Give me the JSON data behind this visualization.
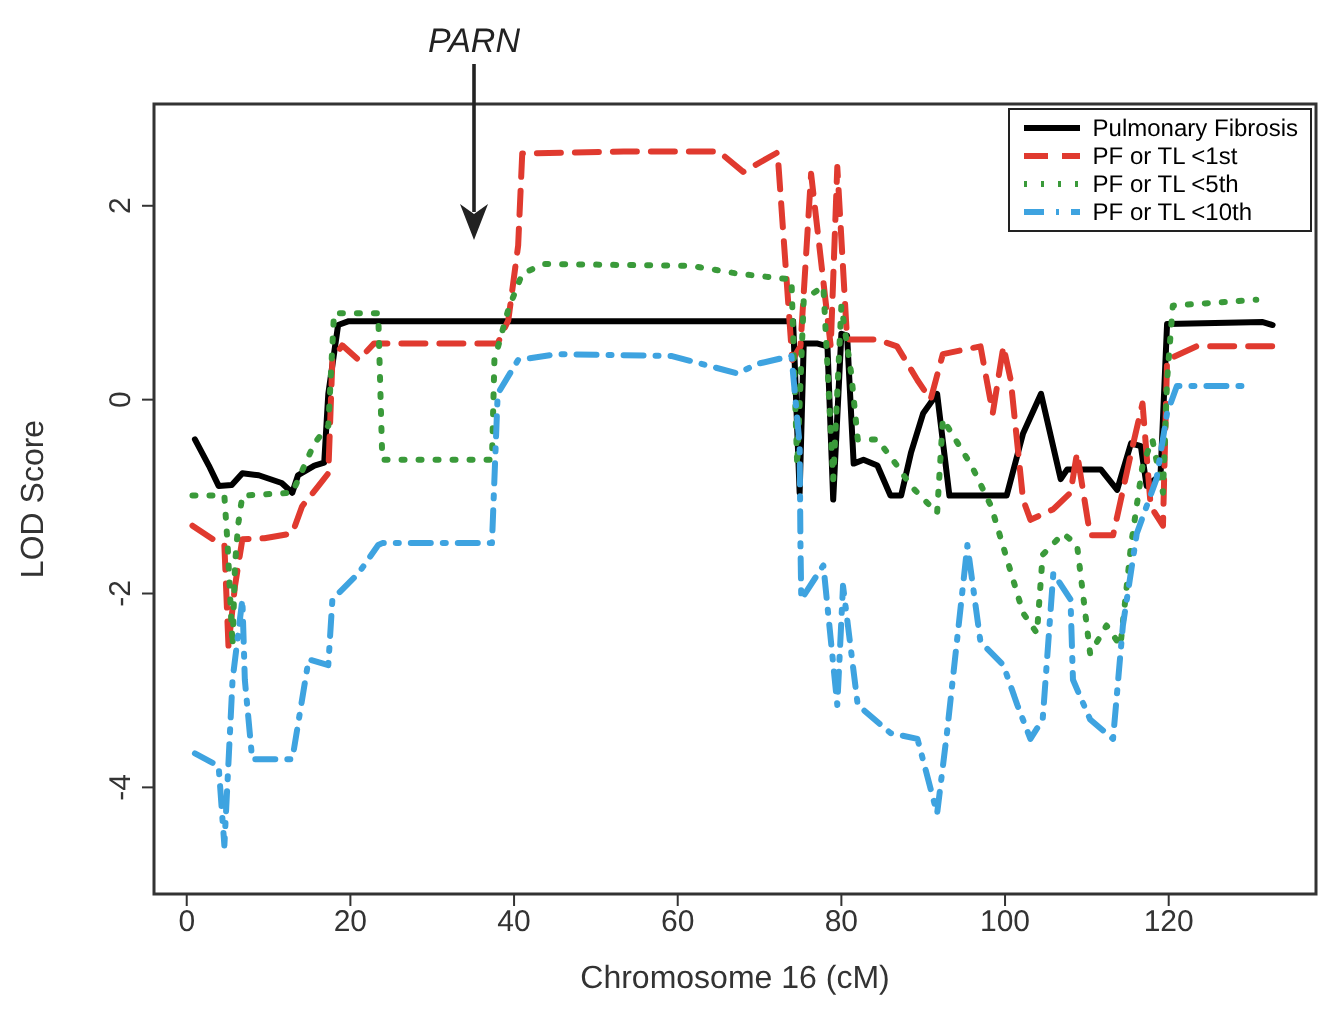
{
  "chart_data": {
    "type": "line",
    "xlabel": "Chromosome 16 (cM)",
    "ylabel": "LOD Score",
    "xlim": [
      -4,
      138
    ],
    "ylim": [
      -5.1,
      3.05
    ],
    "xticks": [
      0,
      20,
      40,
      60,
      80,
      100,
      120
    ],
    "yticks": [
      -4,
      -2,
      0,
      2
    ],
    "grid": false,
    "legend": "top right",
    "marker": "none",
    "annotations": [
      "PARN"
    ],
    "series": [
      {
        "name": "Pulmonary Fibrosis",
        "color": "#000000",
        "line_style": "solid",
        "x": [
          1,
          2.7,
          3.9,
          5.5,
          6.8,
          8.8,
          11.6,
          12.9,
          13.6,
          15.6,
          16.8,
          17.3,
          18.5,
          19.8,
          74.1,
          74.9,
          75.4,
          77,
          78.3,
          79,
          80,
          80.7,
          81.5,
          82.7,
          84.4,
          86,
          87.3,
          88.5,
          90,
          91.7,
          93.2,
          100.2,
          102.2,
          104.4,
          106.8,
          107.6,
          111.7,
          113.7,
          115.4,
          116.6,
          117.3,
          119,
          119.8,
          131.5,
          132.7
        ],
        "values": [
          -0.41,
          -0.68,
          -0.89,
          -0.88,
          -0.76,
          -0.78,
          -0.86,
          -0.96,
          -0.78,
          -0.68,
          -0.65,
          0.06,
          0.77,
          0.81,
          0.81,
          -0.96,
          0.58,
          0.58,
          0.55,
          -1.03,
          0.68,
          0.66,
          -0.66,
          -0.62,
          -0.68,
          -0.99,
          -0.99,
          -0.55,
          -0.14,
          0.06,
          -0.99,
          -0.99,
          -0.35,
          0.06,
          -0.82,
          -0.72,
          -0.72,
          -0.93,
          -0.45,
          -0.48,
          -0.89,
          -0.78,
          0.78,
          0.8,
          0.77
        ]
      },
      {
        "name": "PF or TL <1st",
        "color": "#e03a2f",
        "line_style": "dashed",
        "x": [
          0.7,
          3.2,
          4.6,
          5.1,
          5.9,
          6.8,
          9.5,
          12.9,
          14.1,
          16.1,
          17.3,
          17.8,
          19,
          21,
          22.9,
          29,
          38,
          39.3,
          40.5,
          41,
          53.4,
          65,
          68,
          72.2,
          74,
          75,
          76.3,
          78.7,
          79.5,
          80.7,
          84.4,
          86.8,
          89.3,
          90.9,
          92.4,
          97,
          98.5,
          99.8,
          100.7,
          102.2,
          103.1,
          105.9,
          108,
          108.8,
          110.4,
          113.2,
          115.4,
          116.8,
          117.8,
          119.3,
          119.8,
          123.4,
          132.7
        ],
        "values": [
          -1.3,
          -1.44,
          -1.5,
          -2.54,
          -1.92,
          -1.44,
          -1.43,
          -1.38,
          -1.1,
          -0.89,
          -0.76,
          0.41,
          0.56,
          0.41,
          0.58,
          0.58,
          0.58,
          0.82,
          1.59,
          2.54,
          2.56,
          2.56,
          2.35,
          2.55,
          0.41,
          0.55,
          2.33,
          0.55,
          2.4,
          0.62,
          0.62,
          0.55,
          0.2,
          0,
          0.47,
          0.55,
          -0.14,
          0.55,
          0.2,
          -1.03,
          -1.24,
          -1.13,
          -0.96,
          -0.55,
          -1.4,
          -1.4,
          -0.55,
          -0.04,
          -1.1,
          -1.3,
          0.41,
          0.55,
          0.55
        ]
      },
      {
        "name": "PF or TL <5th",
        "color": "#3a9a3a",
        "line_style": "dotted",
        "x": [
          0.7,
          4.6,
          5,
          5.6,
          5.9,
          6.3,
          6.8,
          12.9,
          15.6,
          17.3,
          18,
          23.4,
          23.9,
          37.3,
          37.6,
          39.3,
          41,
          43.7,
          61.7,
          67.3,
          73.9,
          74.6,
          75.4,
          77.8,
          79,
          80,
          81.2,
          82,
          84.4,
          86.8,
          88.5,
          91.7,
          92.4,
          95.9,
          98.3,
          102.2,
          103.9,
          104.6,
          107.1,
          108.8,
          110.4,
          112.4,
          114.1,
          115.4,
          116.8,
          118,
          119.3,
          119.8,
          120.5,
          130.7
        ],
        "values": [
          -0.99,
          -0.99,
          -1.5,
          -2.54,
          -1.7,
          -1.28,
          -0.99,
          -0.96,
          -0.45,
          -0.27,
          0.89,
          0.89,
          -0.62,
          -0.62,
          0.41,
          0.93,
          1.3,
          1.4,
          1.38,
          1.3,
          1.24,
          -0.68,
          1.03,
          1.17,
          -0.82,
          0.97,
          0.27,
          -0.41,
          -0.41,
          -0.68,
          -0.89,
          -1.17,
          -0.2,
          -0.68,
          -1.1,
          -2.2,
          -2.41,
          -1.6,
          -1.38,
          -1.5,
          -2.62,
          -2.33,
          -2.54,
          -1.5,
          -0.68,
          -0.41,
          -0.96,
          0.2,
          0.97,
          1.03
        ]
      },
      {
        "name": "PF or TL <10th",
        "color": "#3ea3e0",
        "line_style": "dashdot",
        "x": [
          1,
          3.9,
          4.6,
          5.6,
          6.8,
          7.1,
          8,
          12.9,
          14.9,
          17.3,
          17.8,
          21,
          23.4,
          23.9,
          37.3,
          38,
          40.5,
          45.4,
          59.3,
          67.3,
          69.8,
          73.9,
          74.9,
          75,
          75.1,
          77.8,
          79.5,
          80.2,
          82,
          86,
          89.3,
          91.7,
          92.9,
          95.4,
          97,
          99.8,
          101.5,
          103.1,
          104.6,
          105.9,
          108,
          108.3,
          110.4,
          113.2,
          114.4,
          116.1,
          118.5,
          119.8,
          121,
          130
        ],
        "values": [
          -3.65,
          -3.78,
          -4.6,
          -2.89,
          -2.06,
          -2.89,
          -3.71,
          -3.71,
          -2.68,
          -2.74,
          -2.06,
          -1.79,
          -1.5,
          -1.48,
          -1.48,
          0.06,
          0.41,
          0.47,
          0.45,
          0.27,
          0.37,
          0.45,
          -0.47,
          -1.5,
          -2.06,
          -1.71,
          -3.15,
          -1.92,
          -3.15,
          -3.44,
          -3.5,
          -4.27,
          -3.44,
          -1.5,
          -2.5,
          -2.74,
          -3.15,
          -3.5,
          -3.3,
          -1.79,
          -2.06,
          -2.89,
          -3.3,
          -3.5,
          -2.33,
          -1.38,
          -0.82,
          -0.14,
          0.14,
          0.14
        ]
      }
    ]
  }
}
